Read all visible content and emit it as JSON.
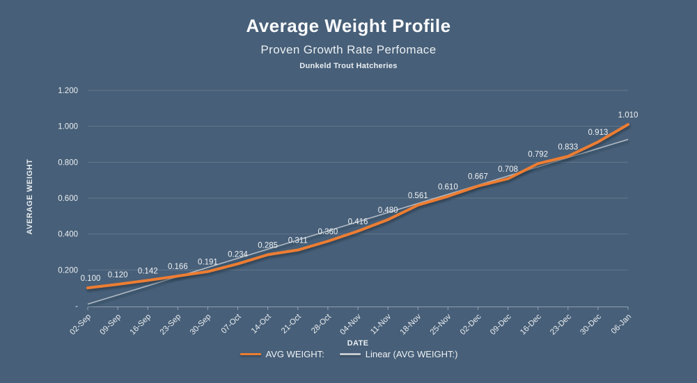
{
  "header": {
    "title": "Average Weight Profile",
    "subtitle": "Proven Growth Rate Perfomace",
    "org": "Dunkeld Trout Hatcheries"
  },
  "chart_data": {
    "type": "line",
    "title": "Average Weight Profile",
    "xlabel": "DATE",
    "ylabel": "AVERAGE WEIGHT",
    "categories": [
      "02-Sep",
      "09-Sep",
      "16-Sep",
      "23-Sep",
      "30-Sep",
      "07-Oct",
      "14-Oct",
      "21-Oct",
      "28-Oct",
      "04-Nov",
      "11-Nov",
      "18-Nov",
      "25-Nov",
      "02-Dec",
      "09-Dec",
      "16-Dec",
      "23-Dec",
      "30-Dec",
      "06-Jan"
    ],
    "series": [
      {
        "name": "AVG WEIGHT:",
        "type": "line",
        "values": [
          0.1,
          0.12,
          0.142,
          0.166,
          0.191,
          0.234,
          0.285,
          0.311,
          0.36,
          0.416,
          0.48,
          0.561,
          0.61,
          0.667,
          0.708,
          0.792,
          0.833,
          0.913,
          1.01
        ]
      },
      {
        "name": "Linear (AVG WEIGHT:)",
        "type": "linear-trendline"
      }
    ],
    "data_labels": true,
    "data_label_decimals": 3,
    "ylim": [
      0,
      1.2
    ],
    "ytick_step": 0.2,
    "ytick_labels": [
      "-",
      "0.200",
      "0.400",
      "0.600",
      "0.800",
      "1.000",
      "1.200"
    ],
    "grid": true,
    "legend_position": "bottom"
  },
  "legend": {
    "avg_label": "AVG WEIGHT:",
    "linear_label": "Linear (AVG WEIGHT:)"
  },
  "colors": {
    "background": "#475F78",
    "series_orange": "#ED7D31",
    "trendline_gray": "#C3CAD1",
    "gridline": "rgba(255,255,255,0.16)",
    "axis_line": "rgba(235,240,245,0.45)",
    "label_text": "#F0F3F5"
  }
}
